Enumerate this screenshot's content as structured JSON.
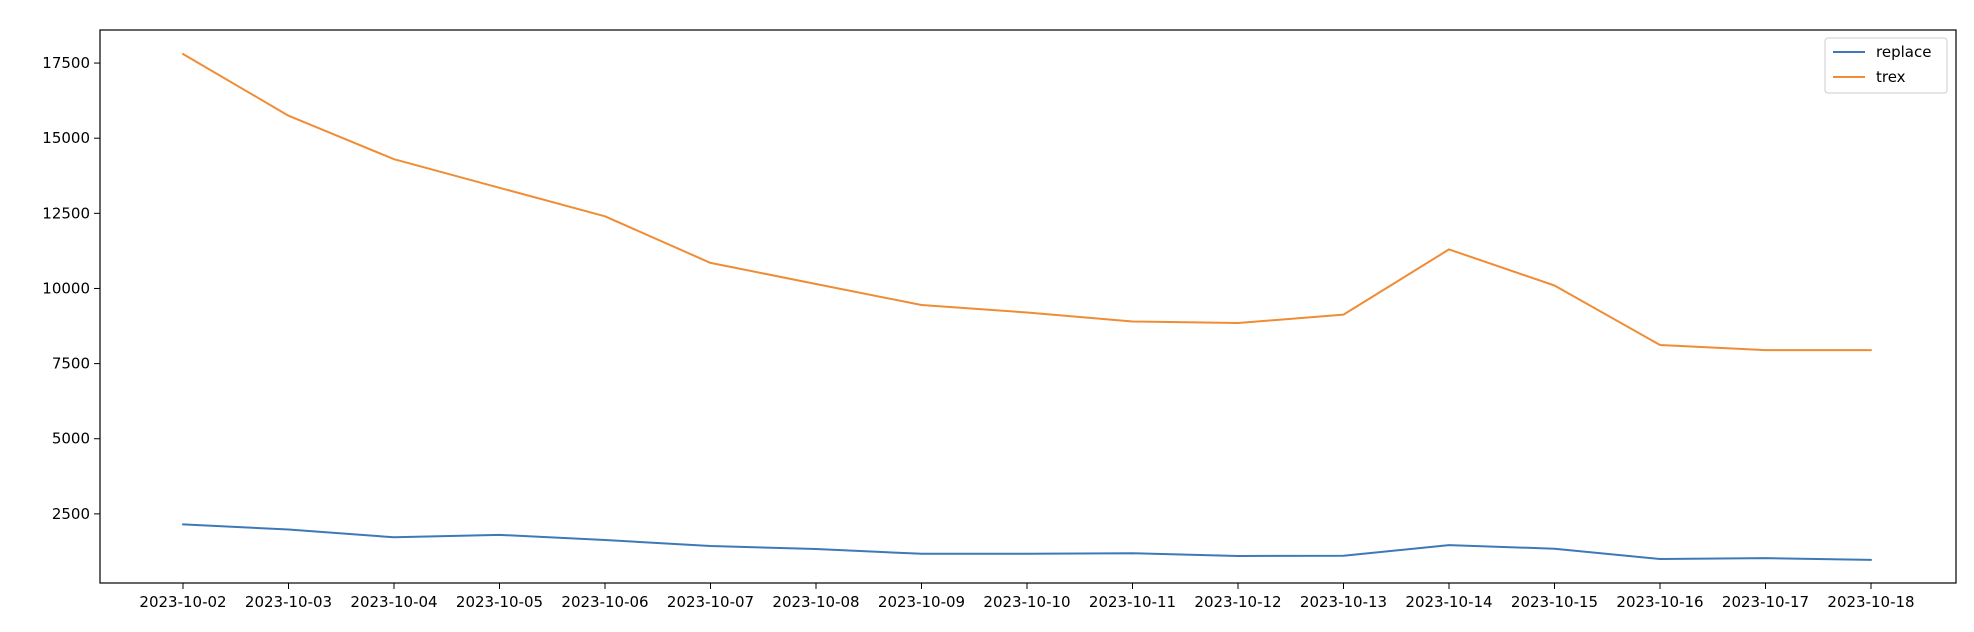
{
  "chart_data": {
    "type": "line",
    "title": "",
    "xlabel": "",
    "ylabel": "",
    "categories": [
      "2023-10-02",
      "2023-10-03",
      "2023-10-04",
      "2023-10-05",
      "2023-10-06",
      "2023-10-07",
      "2023-10-08",
      "2023-10-09",
      "2023-10-10",
      "2023-10-11",
      "2023-10-12",
      "2023-10-13",
      "2023-10-14",
      "2023-10-15",
      "2023-10-16",
      "2023-10-17",
      "2023-10-18"
    ],
    "series": [
      {
        "name": "replace",
        "color": "#3d79b7",
        "values": [
          2150,
          1980,
          1720,
          1800,
          1630,
          1430,
          1330,
          1170,
          1170,
          1190,
          1100,
          1110,
          1460,
          1340,
          1000,
          1030,
          970
        ]
      },
      {
        "name": "trex",
        "color": "#f08c35",
        "values": [
          17800,
          15750,
          14300,
          13350,
          12400,
          10850,
          10150,
          9450,
          9200,
          8900,
          8850,
          9130,
          11300,
          10100,
          8120,
          7950,
          7950
        ]
      }
    ],
    "yticks": [
      2500,
      5000,
      7500,
      10000,
      12500,
      15000,
      17500
    ],
    "ylim": [
      200,
      18600
    ],
    "grid": false,
    "legend": "top-right"
  }
}
